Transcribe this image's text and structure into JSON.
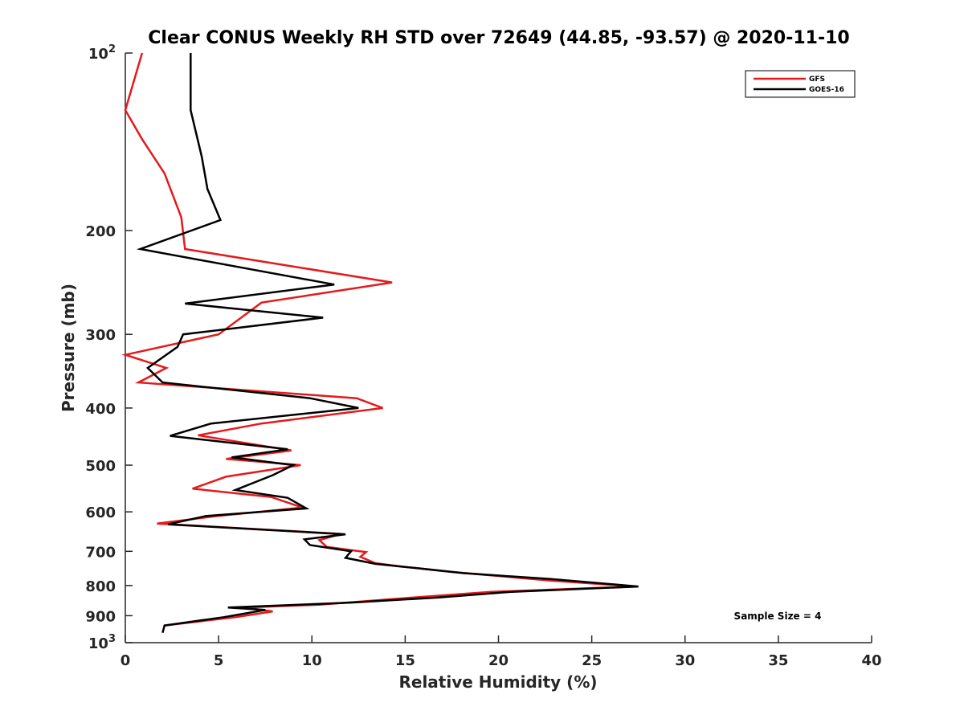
{
  "chart_data": {
    "type": "line",
    "title": "Clear CONUS Weekly RH STD over 72649 (44.85, -93.57) @ 2020-11-10",
    "xlabel": "Relative Humidity (%)",
    "ylabel": "Pressure (mb)",
    "xlim": [
      0,
      40
    ],
    "ylim": [
      100,
      1000
    ],
    "y_scale": "log",
    "y_reversed": true,
    "grid": false,
    "legend_position": "top-right",
    "x_ticks": [
      {
        "value": 0,
        "label": "0"
      },
      {
        "value": 5,
        "label": "5"
      },
      {
        "value": 10,
        "label": "10"
      },
      {
        "value": 15,
        "label": "15"
      },
      {
        "value": 20,
        "label": "20"
      },
      {
        "value": 25,
        "label": "25"
      },
      {
        "value": 30,
        "label": "30"
      },
      {
        "value": 35,
        "label": "35"
      },
      {
        "value": 40,
        "label": "40"
      }
    ],
    "y_ticks": [
      {
        "value": 100,
        "base": "10",
        "exp": "2"
      },
      {
        "value": 200,
        "base": "200",
        "exp": ""
      },
      {
        "value": 300,
        "base": "300",
        "exp": ""
      },
      {
        "value": 400,
        "base": "400",
        "exp": ""
      },
      {
        "value": 500,
        "base": "500",
        "exp": ""
      },
      {
        "value": 600,
        "base": "600",
        "exp": ""
      },
      {
        "value": 700,
        "base": "700",
        "exp": ""
      },
      {
        "value": 800,
        "base": "800",
        "exp": ""
      },
      {
        "value": 900,
        "base": "900",
        "exp": ""
      },
      {
        "value": 1000,
        "base": "10",
        "exp": "3"
      }
    ],
    "annotation": "Sample Size = 4",
    "series": [
      {
        "name": "GFS",
        "color": "#e41a1c",
        "points": [
          [
            0.9,
            100
          ],
          [
            0.0,
            125
          ],
          [
            0.9,
            140
          ],
          [
            2.1,
            160
          ],
          [
            3.0,
            190
          ],
          [
            3.2,
            215
          ],
          [
            14.3,
            245
          ],
          [
            7.3,
            265
          ],
          [
            5.0,
            300
          ],
          [
            0.0,
            325
          ],
          [
            2.2,
            342
          ],
          [
            0.7,
            362
          ],
          [
            12.4,
            385
          ],
          [
            13.8,
            400
          ],
          [
            7.3,
            425
          ],
          [
            3.9,
            445
          ],
          [
            8.9,
            472
          ],
          [
            5.4,
            488
          ],
          [
            9.4,
            500
          ],
          [
            5.4,
            523
          ],
          [
            3.6,
            548
          ],
          [
            7.8,
            566
          ],
          [
            9.5,
            590
          ],
          [
            4.9,
            610
          ],
          [
            1.7,
            628
          ],
          [
            11.6,
            654
          ],
          [
            10.4,
            670
          ],
          [
            10.8,
            688
          ],
          [
            12.9,
            702
          ],
          [
            12.6,
            715
          ],
          [
            13.4,
            733
          ],
          [
            14.8,
            743
          ],
          [
            17.4,
            758
          ],
          [
            22.8,
            785
          ],
          [
            27.4,
            803
          ],
          [
            19.6,
            820
          ],
          [
            15.1,
            840
          ],
          [
            10.4,
            862
          ],
          [
            6.4,
            872
          ],
          [
            7.9,
            885
          ],
          [
            5.9,
            905
          ],
          [
            2.1,
            935
          ]
        ]
      },
      {
        "name": "GOES-16",
        "color": "#000000",
        "points": [
          [
            3.5,
            100
          ],
          [
            3.5,
            110
          ],
          [
            3.5,
            125
          ],
          [
            4.1,
            150
          ],
          [
            4.4,
            170
          ],
          [
            5.1,
            192
          ],
          [
            0.8,
            215
          ],
          [
            11.2,
            247
          ],
          [
            3.2,
            266
          ],
          [
            10.6,
            281
          ],
          [
            3.1,
            300
          ],
          [
            2.8,
            315
          ],
          [
            1.2,
            342
          ],
          [
            2.0,
            362
          ],
          [
            9.9,
            385
          ],
          [
            12.5,
            400
          ],
          [
            4.6,
            425
          ],
          [
            2.4,
            446
          ],
          [
            8.7,
            470
          ],
          [
            5.7,
            485
          ],
          [
            9.0,
            500
          ],
          [
            7.9,
            520
          ],
          [
            5.9,
            551
          ],
          [
            8.7,
            568
          ],
          [
            9.7,
            592
          ],
          [
            4.3,
            610
          ],
          [
            2.3,
            630
          ],
          [
            11.8,
            655
          ],
          [
            9.6,
            668
          ],
          [
            9.9,
            683
          ],
          [
            12.1,
            700
          ],
          [
            11.8,
            718
          ],
          [
            13.4,
            735
          ],
          [
            15.7,
            748
          ],
          [
            18.1,
            762
          ],
          [
            22.8,
            780
          ],
          [
            27.5,
            803
          ],
          [
            20.7,
            820
          ],
          [
            16.8,
            838
          ],
          [
            12.1,
            855
          ],
          [
            5.5,
            872
          ],
          [
            7.5,
            880
          ],
          [
            5.3,
            905
          ],
          [
            2.1,
            935
          ],
          [
            2.0,
            962
          ]
        ]
      }
    ]
  }
}
